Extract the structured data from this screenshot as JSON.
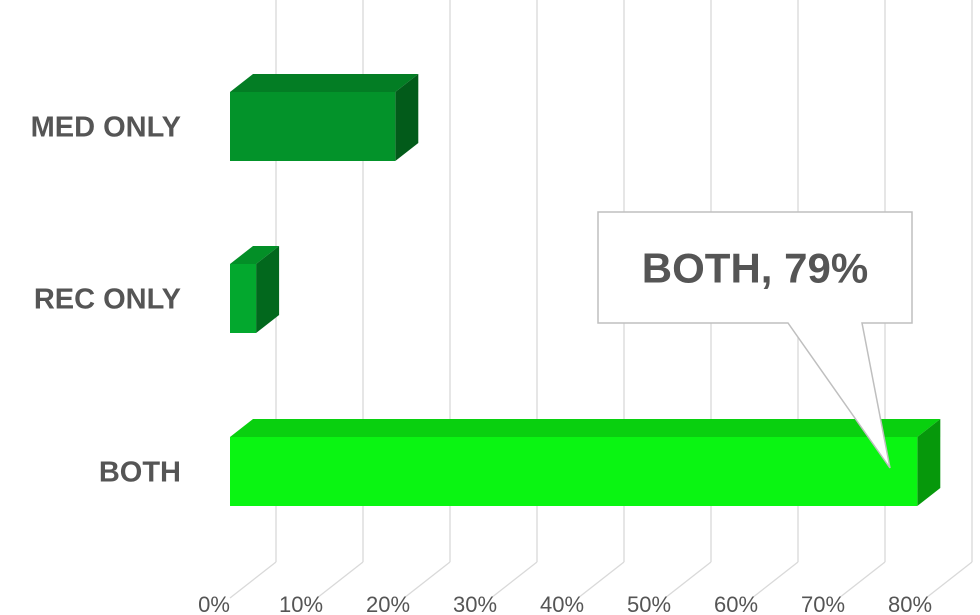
{
  "chart_data": {
    "type": "bar",
    "orientation": "horizontal",
    "categories": [
      "MED ONLY",
      "REC ONLY",
      "BOTH"
    ],
    "values": [
      19,
      3,
      79
    ],
    "xlim": [
      0,
      80
    ],
    "x_ticks": [
      "0%",
      "10%",
      "20%",
      "30%",
      "40%",
      "50%",
      "60%",
      "70%",
      "80%"
    ],
    "grid": true,
    "callout": "BOTH, 79%",
    "colors": {
      "MED ONLY": "#03932a",
      "REC ONLY": "#03a82e",
      "BOTH": "#0af512"
    }
  }
}
